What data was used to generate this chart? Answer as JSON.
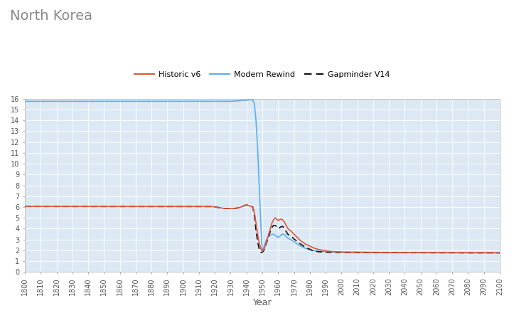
{
  "title": "North Korea",
  "xlabel": "Year",
  "xlim": [
    1800,
    2100
  ],
  "ylim": [
    0,
    16
  ],
  "yticks": [
    0,
    1,
    2,
    3,
    4,
    5,
    6,
    7,
    8,
    9,
    10,
    11,
    12,
    13,
    14,
    15,
    16
  ],
  "xticks": [
    1800,
    1810,
    1820,
    1830,
    1840,
    1850,
    1860,
    1870,
    1880,
    1890,
    1900,
    1910,
    1920,
    1930,
    1940,
    1950,
    1960,
    1970,
    1980,
    1990,
    2000,
    2010,
    2020,
    2030,
    2040,
    2050,
    2060,
    2070,
    2080,
    2090,
    2100
  ],
  "fig_bg": "#ffffff",
  "plot_bg": "#dce9f5",
  "grid_color": "#ffffff",
  "legend": [
    {
      "label": "Historic v6",
      "color": "#e05535",
      "lw": 1.2
    },
    {
      "label": "Modern Rewind",
      "color": "#5aaef0",
      "lw": 1.2
    },
    {
      "label": "Gapminder V14",
      "color": "#111111",
      "lw": 1.2
    }
  ],
  "title_color": "#888888",
  "title_fontsize": 14,
  "tick_fontsize": 7,
  "tick_color": "#555555",
  "xlabel_fontsize": 9,
  "xlabel_color": "#555555",
  "modern_rewind_x": [
    1800,
    1900,
    1920,
    1925,
    1930,
    1933,
    1935,
    1937,
    1939,
    1940,
    1941,
    1942,
    1943,
    1944,
    1945,
    1946,
    1947,
    1948,
    1949,
    1950,
    1951,
    1952,
    1953,
    1954,
    1955,
    1956,
    1957,
    1958,
    1959,
    1960,
    1961,
    1962,
    1963,
    1964,
    1965,
    1966,
    1967,
    1968,
    1969,
    1970,
    1971,
    1972,
    1973,
    1975,
    1977,
    1980,
    1982,
    1985,
    1990,
    1995,
    2000,
    2010,
    2020,
    2030,
    2050,
    2100
  ],
  "modern_rewind_y": [
    15.75,
    15.75,
    15.75,
    15.75,
    15.75,
    15.78,
    15.8,
    15.82,
    15.85,
    15.87,
    15.88,
    15.89,
    15.9,
    15.87,
    15.5,
    14.0,
    11.5,
    8.0,
    4.5,
    1.9,
    2.3,
    2.8,
    3.1,
    3.3,
    3.4,
    3.5,
    3.5,
    3.4,
    3.3,
    3.2,
    3.3,
    3.45,
    3.5,
    3.45,
    3.3,
    3.15,
    3.05,
    3.0,
    2.9,
    2.8,
    2.7,
    2.6,
    2.5,
    2.35,
    2.2,
    2.05,
    1.98,
    1.92,
    1.88,
    1.85,
    1.83,
    1.82,
    1.81,
    1.8,
    1.79,
    1.78
  ],
  "historic_v6_x": [
    1800,
    1900,
    1910,
    1918,
    1920,
    1922,
    1924,
    1925,
    1926,
    1928,
    1930,
    1932,
    1934,
    1936,
    1938,
    1939,
    1940,
    1941,
    1942,
    1943,
    1944,
    1945,
    1946,
    1947,
    1948,
    1949,
    1950,
    1951,
    1952,
    1953,
    1954,
    1955,
    1956,
    1957,
    1958,
    1959,
    1960,
    1961,
    1962,
    1963,
    1964,
    1965,
    1966,
    1967,
    1968,
    1969,
    1970,
    1971,
    1972,
    1973,
    1975,
    1977,
    1980,
    1982,
    1985,
    1990,
    1995,
    2000,
    2010,
    2020,
    2030,
    2050,
    2100
  ],
  "historic_v6_y": [
    6.05,
    6.05,
    6.05,
    6.05,
    6.0,
    5.97,
    5.93,
    5.88,
    5.87,
    5.87,
    5.88,
    5.87,
    5.9,
    5.97,
    6.1,
    6.15,
    6.2,
    6.15,
    6.1,
    6.05,
    6.0,
    5.5,
    4.5,
    3.5,
    2.7,
    2.2,
    1.9,
    2.1,
    2.5,
    3.0,
    3.5,
    4.0,
    4.5,
    4.8,
    5.0,
    4.9,
    4.75,
    4.85,
    4.9,
    4.8,
    4.6,
    4.3,
    4.05,
    3.9,
    3.8,
    3.65,
    3.5,
    3.35,
    3.2,
    3.05,
    2.8,
    2.6,
    2.4,
    2.25,
    2.1,
    1.95,
    1.88,
    1.85,
    1.83,
    1.82,
    1.81,
    1.79,
    1.78
  ],
  "gapminder_v14_x": [
    1800,
    1900,
    1910,
    1918,
    1920,
    1922,
    1924,
    1925,
    1926,
    1928,
    1930,
    1932,
    1934,
    1936,
    1938,
    1939,
    1940,
    1941,
    1942,
    1943,
    1944,
    1945,
    1946,
    1947,
    1948,
    1949,
    1950,
    1951,
    1952,
    1953,
    1954,
    1955,
    1956,
    1957,
    1958,
    1959,
    1960,
    1961,
    1962,
    1963,
    1964,
    1965,
    1966,
    1967,
    1968,
    1969,
    1970,
    1971,
    1972,
    1973,
    1975,
    1977,
    1980,
    1982,
    1985,
    1990,
    1995,
    2000,
    2010,
    2020,
    2030,
    2050,
    2100
  ],
  "gapminder_v14_y": [
    6.05,
    6.05,
    6.05,
    6.05,
    6.0,
    5.97,
    5.93,
    5.88,
    5.87,
    5.87,
    5.88,
    5.87,
    5.9,
    5.97,
    6.1,
    6.15,
    6.2,
    6.15,
    6.1,
    6.05,
    6.0,
    5.2,
    3.8,
    2.8,
    2.1,
    1.82,
    1.82,
    2.0,
    2.4,
    2.85,
    3.3,
    3.75,
    4.1,
    4.3,
    4.3,
    4.2,
    4.0,
    4.1,
    4.2,
    4.2,
    4.0,
    3.75,
    3.5,
    3.4,
    3.35,
    3.2,
    3.05,
    2.95,
    2.82,
    2.7,
    2.5,
    2.3,
    2.1,
    1.97,
    1.88,
    1.84,
    1.82,
    1.81,
    1.8,
    1.8,
    1.79,
    1.78,
    1.77
  ]
}
